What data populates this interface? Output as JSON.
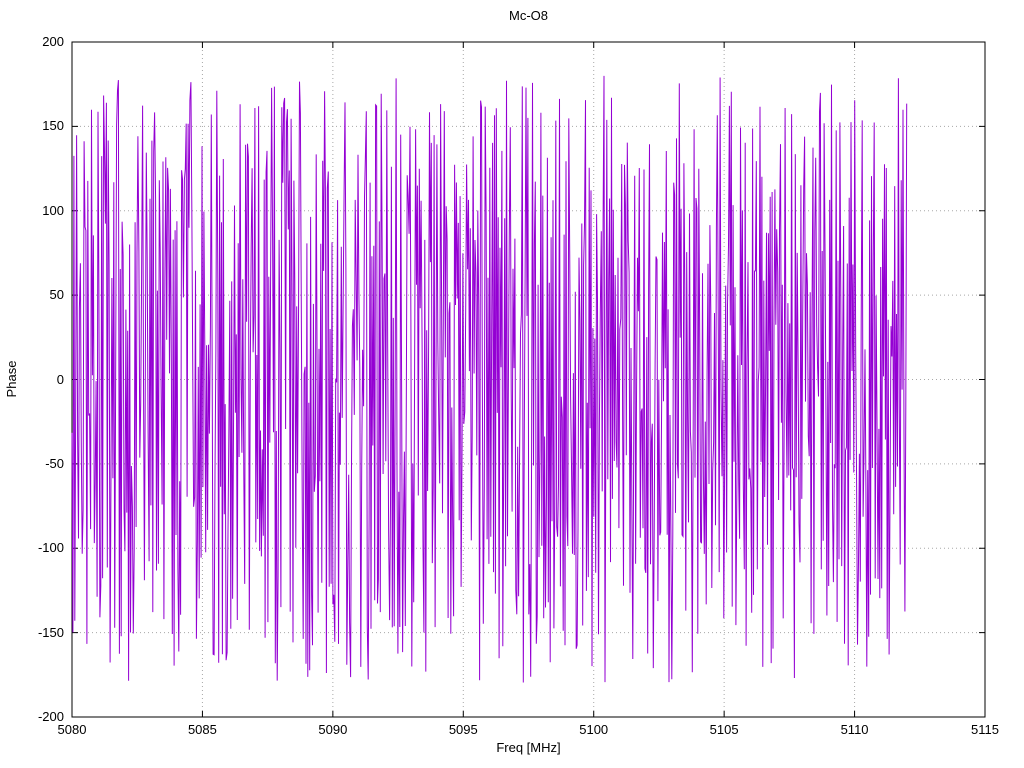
{
  "page": {
    "background": "#ffffff"
  },
  "chart_data": {
    "type": "line",
    "title": "Mc-O8",
    "xlabel": "Freq [MHz]",
    "ylabel": "Phase",
    "xlim": [
      5080,
      5115
    ],
    "ylim": [
      -200,
      200
    ],
    "x_ticks": [
      5080,
      5085,
      5090,
      5095,
      5100,
      5105,
      5110,
      5115
    ],
    "y_ticks": [
      -200,
      -150,
      -100,
      -50,
      0,
      50,
      100,
      150,
      200
    ],
    "grid": true,
    "grid_color": "#a8a8a8",
    "border_color": "#000000",
    "legend": "none",
    "series": [
      {
        "name": "phase",
        "color": "#9400d3",
        "x_start": 5080.0,
        "x_end": 5112.0,
        "n_points": 900,
        "y_min": -180,
        "y_max": 180,
        "generator": "wrapped-random-walk",
        "seed": 1234,
        "step_max": 300,
        "description": "Wrapped phase noise filling the band 5080-5112 MHz, values bounded in [-180, 180] deg"
      }
    ]
  }
}
